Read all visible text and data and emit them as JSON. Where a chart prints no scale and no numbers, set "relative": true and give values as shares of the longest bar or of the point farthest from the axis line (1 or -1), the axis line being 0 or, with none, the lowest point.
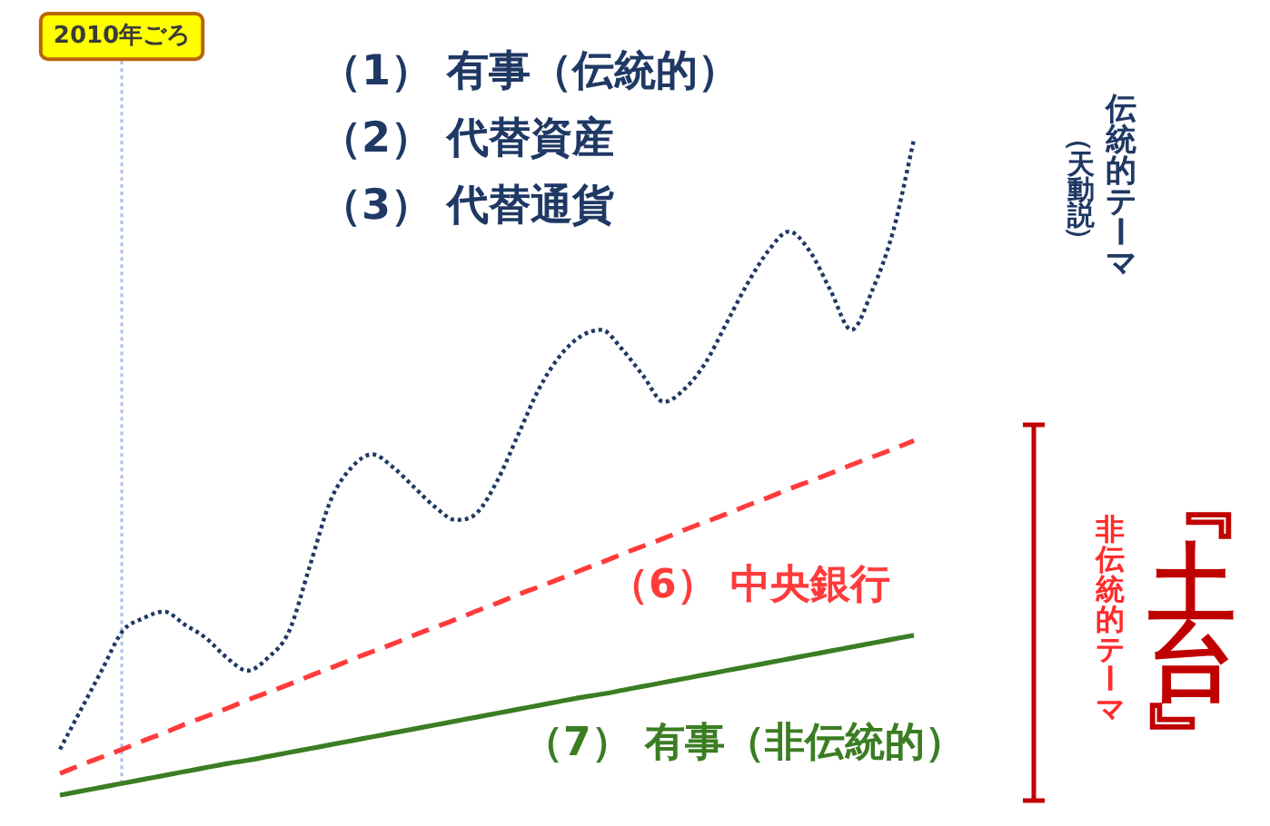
{
  "chart_data": {
    "type": "line",
    "relative": true,
    "categories": [
      null,
      null,
      null,
      null,
      null,
      null,
      null,
      null,
      null,
      null,
      null,
      null,
      null,
      null,
      null,
      null,
      null,
      null,
      null,
      null,
      null,
      null,
      null,
      null,
      null,
      null,
      null,
      null,
      null,
      null,
      null,
      null,
      null,
      null,
      null,
      null,
      null,
      null,
      null,
      null,
      null,
      null
    ],
    "series": [
      {
        "color": "#1f3864",
        "line_style": "dotted",
        "values": [
          0.07,
          0.13,
          0.19,
          0.25,
          0.27,
          0.28,
          0.26,
          0.24,
          0.21,
          0.19,
          0.21,
          0.25,
          0.35,
          0.45,
          0.5,
          0.52,
          0.5,
          0.47,
          0.44,
          0.42,
          0.43,
          0.48,
          0.55,
          0.62,
          0.67,
          0.7,
          0.71,
          0.68,
          0.64,
          0.6,
          0.62,
          0.66,
          0.72,
          0.78,
          0.83,
          0.86,
          0.83,
          0.77,
          0.71,
          0.77,
          0.86,
          1.0
        ]
      },
      {
        "name": "（6） 中央銀行",
        "color": "#ff3b3b",
        "line_style": "dashed",
        "values": [
          0.033,
          0.046,
          0.058,
          0.07,
          0.083,
          0.095,
          0.108,
          0.12,
          0.132,
          0.145,
          0.157,
          0.169,
          0.182,
          0.194,
          0.207,
          0.219,
          0.231,
          0.244,
          0.256,
          0.268,
          0.281,
          0.293,
          0.306,
          0.318,
          0.33,
          0.343,
          0.355,
          0.368,
          0.38,
          0.392,
          0.405,
          0.417,
          0.429,
          0.442,
          0.454,
          0.467,
          0.479,
          0.491,
          0.504,
          0.516,
          0.528,
          0.541
        ]
      },
      {
        "name": "（7） 有事（非伝統的）",
        "color": "#3b7d23",
        "line_style": "solid",
        "values": [
          0,
          0.006,
          0.012,
          0.018,
          0.024,
          0.03,
          0.036,
          0.042,
          0.048,
          0.053,
          0.059,
          0.065,
          0.071,
          0.077,
          0.083,
          0.089,
          0.095,
          0.101,
          0.107,
          0.113,
          0.119,
          0.125,
          0.131,
          0.137,
          0.143,
          0.149,
          0.154,
          0.16,
          0.166,
          0.172,
          0.178,
          0.184,
          0.19,
          0.196,
          0.202,
          0.208,
          0.214,
          0.22,
          0.226,
          0.232,
          0.238,
          0.244
        ]
      }
    ],
    "annotations": [
      "2010年ごろ",
      "（1） 有事（伝統的）",
      "（2） 代替資産",
      "（3） 代替通貨",
      "伝統的テーマ",
      "（天動説）",
      "非伝統的テーマ",
      "『土台』"
    ]
  }
}
